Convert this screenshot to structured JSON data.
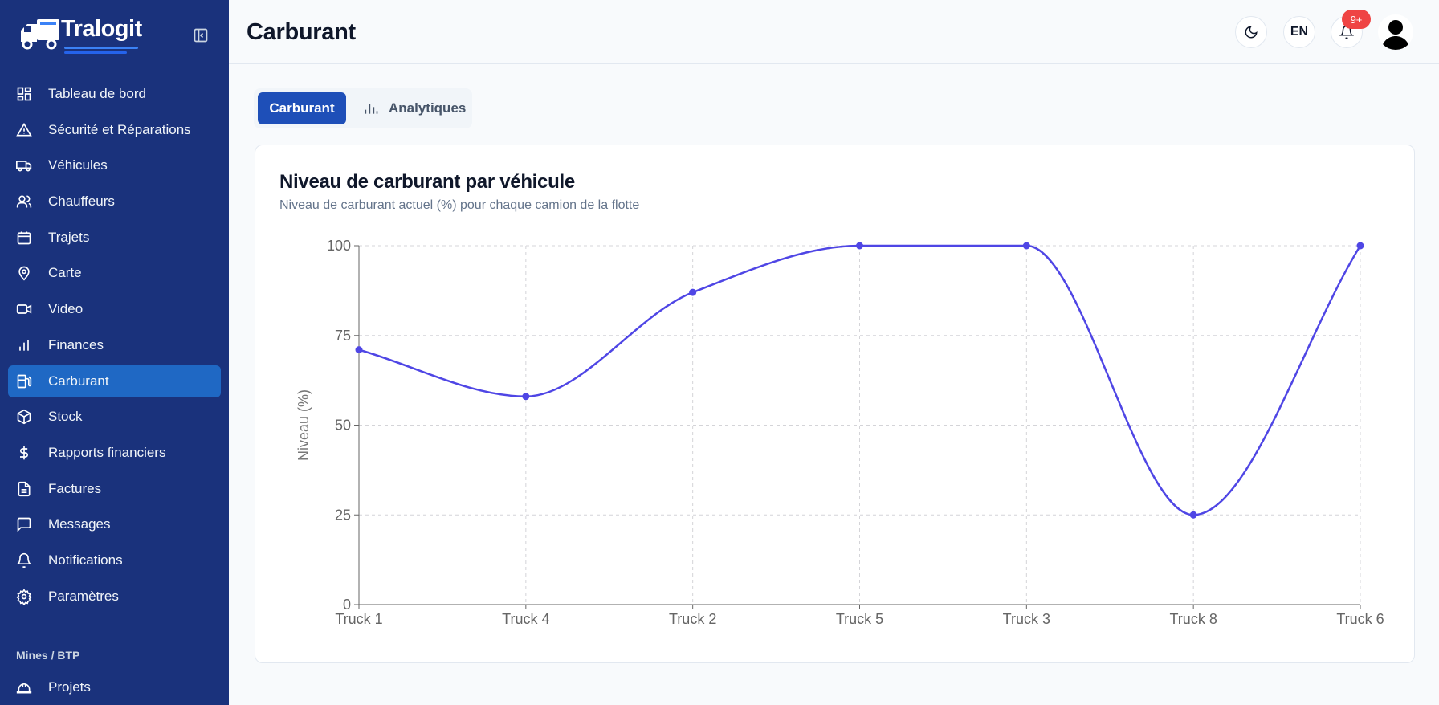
{
  "app": {
    "brand": "Tralogit"
  },
  "sidebar": {
    "items": [
      {
        "label": "Tableau de bord",
        "icon": "dashboard-icon"
      },
      {
        "label": "Sécurité et Réparations",
        "icon": "warning-icon"
      },
      {
        "label": "Véhicules",
        "icon": "truck-icon"
      },
      {
        "label": "Chauffeurs",
        "icon": "users-icon"
      },
      {
        "label": "Trajets",
        "icon": "calendar-icon"
      },
      {
        "label": "Carte",
        "icon": "map-pin-icon"
      },
      {
        "label": "Video",
        "icon": "video-icon"
      },
      {
        "label": "Finances",
        "icon": "bar-chart-icon"
      },
      {
        "label": "Carburant",
        "icon": "fuel-icon",
        "active": true
      },
      {
        "label": "Stock",
        "icon": "package-icon"
      },
      {
        "label": "Rapports financiers",
        "icon": "dollar-icon"
      },
      {
        "label": "Factures",
        "icon": "file-text-icon"
      },
      {
        "label": "Messages",
        "icon": "message-icon"
      },
      {
        "label": "Notifications",
        "icon": "bell-icon"
      },
      {
        "label": "Paramètres",
        "icon": "settings-icon"
      }
    ],
    "section_label": "Mines / BTP",
    "section_items": [
      {
        "label": "Projets",
        "icon": "hard-hat-icon"
      }
    ]
  },
  "header": {
    "title": "Carburant",
    "lang": "EN",
    "notif_badge": "9+"
  },
  "tabs": [
    {
      "label": "Carburant",
      "active": true
    },
    {
      "label": "Analytiques",
      "active": false,
      "icon": "bar-chart-icon"
    }
  ],
  "card": {
    "title": "Niveau de carburant par véhicule",
    "subtitle": "Niveau de carburant actuel (%) pour chaque camion de la flotte"
  },
  "chart_data": {
    "type": "line",
    "categories": [
      "Truck 1",
      "Truck 4",
      "Truck 2",
      "Truck 5",
      "Truck 3",
      "Truck 8",
      "Truck 6"
    ],
    "values": [
      71,
      58,
      87,
      100,
      100,
      25,
      100
    ],
    "ylabel": "Niveau (%)",
    "ylim": [
      0,
      100
    ],
    "yticks": [
      0,
      25,
      50,
      75,
      100
    ],
    "grid": true,
    "line_color": "#4f46e5",
    "smooth": true
  },
  "colors": {
    "sidebar_bg": "#1a327c",
    "active_item": "#1f68c4",
    "accent": "#1e4fb8",
    "badge": "#ef4444"
  }
}
